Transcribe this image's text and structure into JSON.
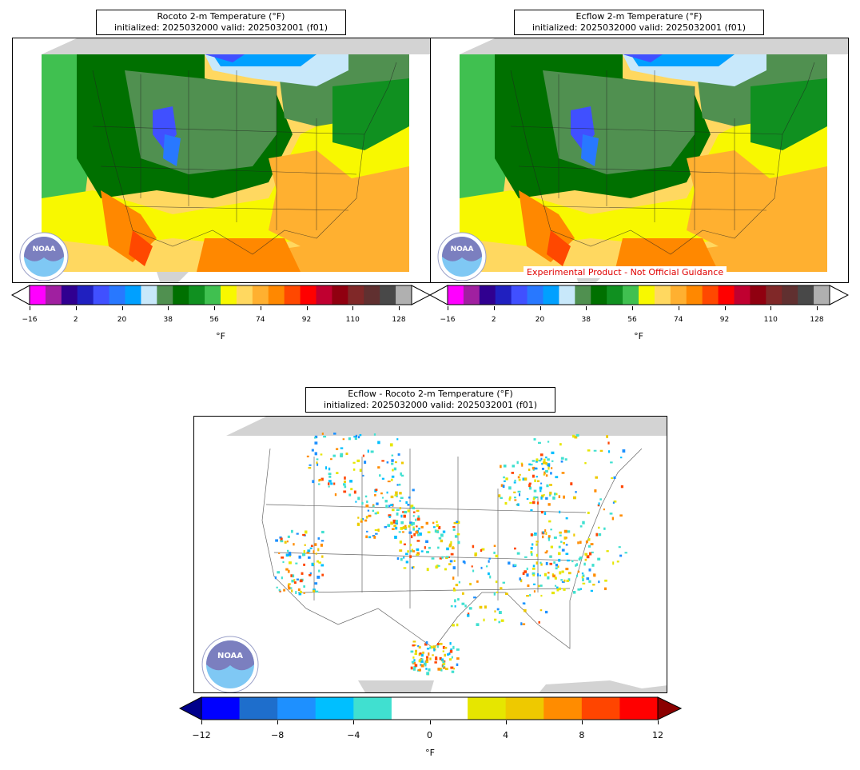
{
  "panels": [
    {
      "id": "rocoto",
      "title_line1": "Rocoto 2-m Temperature (°F)",
      "title_line2": "initialized: 2025032000 valid: 2025032001 (f01)"
    },
    {
      "id": "ecflow",
      "title_line1": "Ecflow 2-m Temperature (°F)",
      "title_line2": "initialized: 2025032000 valid: 2025032001 (f01)",
      "warning": "Experimental Product - Not Official Guidance"
    },
    {
      "id": "diff",
      "title_line1": "Ecflow - Rocoto 2-m Temperature (°F)",
      "title_line2": "initialized: 2025032000 valid: 2025032001 (f01)"
    }
  ],
  "logo_text": "NOAA",
  "temp_colorbar": {
    "unit": "°F",
    "ticks": [
      "−16",
      "2",
      "20",
      "38",
      "56",
      "74",
      "92",
      "110",
      "128"
    ],
    "colors": [
      "#ff00ff",
      "#a020a0",
      "#300090",
      "#2020c0",
      "#4050ff",
      "#2878ff",
      "#00a0ff",
      "#c8e8fa",
      "#509050",
      "#007000",
      "#109020",
      "#40c050",
      "#f8f800",
      "#ffd860",
      "#ffb030",
      "#ff8800",
      "#ff4800",
      "#ff0000",
      "#c00030",
      "#900010",
      "#802828",
      "#603030",
      "#484848",
      "#b0b0b0"
    ]
  },
  "diff_colorbar": {
    "unit": "°F",
    "ticks": [
      "−12",
      "−8",
      "−4",
      "0",
      "4",
      "8",
      "12"
    ],
    "colors": [
      "#0000ff",
      "#1e6ecc",
      "#1e90ff",
      "#00bfff",
      "#40e0d0",
      "#ffffff",
      "#ffffff",
      "#e6e600",
      "#eec900",
      "#ff8c00",
      "#ff4500",
      "#ff0000"
    ],
    "under_color": "#00008b",
    "over_color": "#8b0000"
  }
}
